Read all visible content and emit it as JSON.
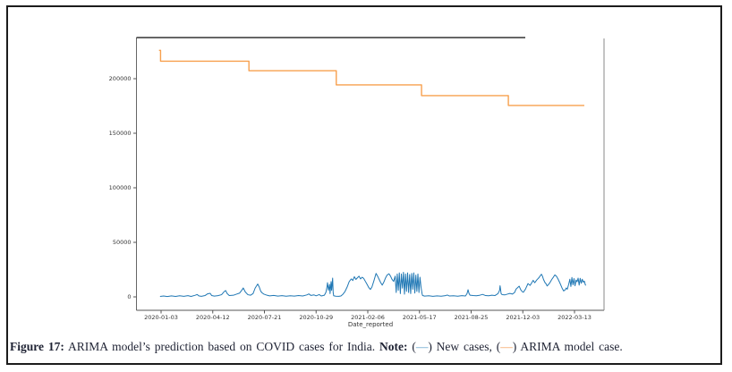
{
  "caption": {
    "figure_label": "Figure 17:",
    "body": " ARIMA model’s prediction based on COVID cases for India. ",
    "note_label": "Note:",
    "seg1": " (",
    "dash1": "—",
    "seg2": ") New cases, (",
    "dash2": "—",
    "seg3": ") ARIMA model case.",
    "dash1_color": "#5b9ec9",
    "dash2_color": "#f5a05a"
  },
  "chart_data": {
    "type": "line",
    "title": "",
    "xlabel": "Date_reported",
    "ylabel": "",
    "grid": false,
    "legend_position": "none",
    "x_unit": "days since 2020-01-03",
    "x_tick_days": [
      0,
      100,
      200,
      300,
      400,
      500,
      600,
      700,
      800
    ],
    "x_tick_labels": [
      "2020-01-03",
      "2020-04-12",
      "2020-07-21",
      "2020-10-29",
      "2021-02-06",
      "2021-05-17",
      "2021-08-25",
      "2021-12-03",
      "2022-03-13"
    ],
    "y_ticks": [
      0,
      50000,
      100000,
      150000,
      200000
    ],
    "y_tick_labels": [
      "0",
      "50000",
      "100000",
      "150000",
      "200000"
    ],
    "xlim_days": [
      -48,
      857
    ],
    "ylim": [
      -12300,
      237700
    ],
    "series": [
      {
        "name": "New cases",
        "color": "#1f77b4",
        "width": 1,
        "points": [
          [
            -2,
            400
          ],
          [
            5,
            800
          ],
          [
            12,
            300
          ],
          [
            20,
            900
          ],
          [
            28,
            400
          ],
          [
            36,
            1000
          ],
          [
            44,
            500
          ],
          [
            52,
            1100
          ],
          [
            58,
            400
          ],
          [
            66,
            1500
          ],
          [
            70,
            2200
          ],
          [
            73,
            900
          ],
          [
            78,
            500
          ],
          [
            85,
            1200
          ],
          [
            90,
            2800
          ],
          [
            95,
            3300
          ],
          [
            98,
            1200
          ],
          [
            103,
            700
          ],
          [
            110,
            1100
          ],
          [
            117,
            2000
          ],
          [
            122,
            4800
          ],
          [
            125,
            5800
          ],
          [
            128,
            3000
          ],
          [
            132,
            1200
          ],
          [
            140,
            1500
          ],
          [
            146,
            2500
          ],
          [
            152,
            3500
          ],
          [
            156,
            6000
          ],
          [
            159,
            8200
          ],
          [
            163,
            4500
          ],
          [
            168,
            2000
          ],
          [
            173,
            1500
          ],
          [
            178,
            3000
          ],
          [
            182,
            8000
          ],
          [
            184,
            9500
          ],
          [
            187,
            11800
          ],
          [
            190,
            9000
          ],
          [
            193,
            5000
          ],
          [
            196,
            3500
          ],
          [
            199,
            2500
          ],
          [
            205,
            1500
          ],
          [
            210,
            900
          ],
          [
            218,
            1300
          ],
          [
            226,
            700
          ],
          [
            234,
            1100
          ],
          [
            242,
            600
          ],
          [
            250,
            1000
          ],
          [
            258,
            700
          ],
          [
            266,
            1200
          ],
          [
            274,
            800
          ],
          [
            282,
            1800
          ],
          [
            286,
            2700
          ],
          [
            290,
            1300
          ],
          [
            296,
            1800
          ],
          [
            300,
            1000
          ],
          [
            306,
            2100
          ],
          [
            310,
            800
          ],
          [
            316,
            1500
          ],
          [
            319,
            4200
          ],
          [
            321,
            9000
          ],
          [
            322,
            13000
          ],
          [
            324,
            6000
          ],
          [
            326,
            11500
          ],
          [
            327,
            3000
          ],
          [
            329,
            14000
          ],
          [
            330,
            6000
          ],
          [
            332,
            17200
          ],
          [
            333,
            4000
          ],
          [
            334,
            1000
          ],
          [
            338,
            600
          ],
          [
            344,
            500
          ],
          [
            348,
            800
          ],
          [
            352,
            2500
          ],
          [
            356,
            5000
          ],
          [
            360,
            9000
          ],
          [
            364,
            14000
          ],
          [
            368,
            16500
          ],
          [
            371,
            15000
          ],
          [
            374,
            18500
          ],
          [
            377,
            16000
          ],
          [
            380,
            17500
          ],
          [
            383,
            19000
          ],
          [
            386,
            16500
          ],
          [
            389,
            18000
          ],
          [
            392,
            17000
          ],
          [
            395,
            14500
          ],
          [
            398,
            12000
          ],
          [
            402,
            8500
          ],
          [
            405,
            6800
          ],
          [
            408,
            9000
          ],
          [
            412,
            15000
          ],
          [
            416,
            21500
          ],
          [
            419,
            19000
          ],
          [
            422,
            16000
          ],
          [
            425,
            13000
          ],
          [
            428,
            10800
          ],
          [
            431,
            13500
          ],
          [
            434,
            17000
          ],
          [
            437,
            19800
          ],
          [
            441,
            21200
          ],
          [
            444,
            19000
          ],
          [
            447,
            16000
          ],
          [
            450,
            14200
          ],
          [
            453,
            19000
          ],
          [
            455,
            4000
          ],
          [
            457,
            21000
          ],
          [
            459,
            6000
          ],
          [
            461,
            22000
          ],
          [
            463,
            3000
          ],
          [
            465,
            21000
          ],
          [
            467,
            8000
          ],
          [
            469,
            22500
          ],
          [
            471,
            2500
          ],
          [
            473,
            21000
          ],
          [
            475,
            5000
          ],
          [
            477,
            22000
          ],
          [
            479,
            4000
          ],
          [
            481,
            20500
          ],
          [
            483,
            3000
          ],
          [
            485,
            21500
          ],
          [
            487,
            7000
          ],
          [
            489,
            22000
          ],
          [
            491,
            3500
          ],
          [
            493,
            20000
          ],
          [
            495,
            5000
          ],
          [
            497,
            21000
          ],
          [
            499,
            4000
          ],
          [
            501,
            18000
          ],
          [
            503,
            9000
          ],
          [
            505,
            3000
          ],
          [
            506,
            1200
          ],
          [
            510,
            700
          ],
          [
            518,
            1000
          ],
          [
            526,
            500
          ],
          [
            534,
            900
          ],
          [
            542,
            600
          ],
          [
            550,
            1100
          ],
          [
            554,
            1700
          ],
          [
            558,
            800
          ],
          [
            566,
            1000
          ],
          [
            574,
            600
          ],
          [
            582,
            1100
          ],
          [
            589,
            800
          ],
          [
            592,
            3000
          ],
          [
            594,
            6600
          ],
          [
            596,
            3000
          ],
          [
            598,
            1500
          ],
          [
            604,
            1200
          ],
          [
            610,
            1000
          ],
          [
            616,
            1400
          ],
          [
            622,
            2300
          ],
          [
            628,
            1200
          ],
          [
            634,
            1000
          ],
          [
            640,
            1500
          ],
          [
            646,
            1200
          ],
          [
            652,
            3000
          ],
          [
            655,
            6000
          ],
          [
            656,
            10200
          ],
          [
            658,
            3000
          ],
          [
            660,
            2000
          ],
          [
            665,
            1800
          ],
          [
            670,
            2500
          ],
          [
            675,
            3200
          ],
          [
            680,
            2600
          ],
          [
            684,
            4000
          ],
          [
            687,
            7200
          ],
          [
            690,
            8500
          ],
          [
            693,
            9800
          ],
          [
            696,
            6500
          ],
          [
            699,
            4800
          ],
          [
            701,
            4200
          ],
          [
            705,
            7000
          ],
          [
            710,
            12200
          ],
          [
            714,
            10500
          ],
          [
            718,
            13500
          ],
          [
            720,
            15200
          ],
          [
            723,
            13000
          ],
          [
            727,
            15500
          ],
          [
            731,
            17500
          ],
          [
            734,
            19500
          ],
          [
            736,
            20800
          ],
          [
            738,
            19000
          ],
          [
            740,
            16000
          ],
          [
            743,
            13000
          ],
          [
            745,
            12000
          ],
          [
            747,
            10000
          ],
          [
            750,
            11500
          ],
          [
            753,
            13500
          ],
          [
            756,
            16000
          ],
          [
            759,
            18000
          ],
          [
            762,
            20200
          ],
          [
            765,
            19000
          ],
          [
            768,
            16500
          ],
          [
            772,
            12500
          ],
          [
            776,
            8000
          ],
          [
            779,
            5400
          ],
          [
            782,
            6500
          ],
          [
            784,
            8200
          ],
          [
            786,
            7000
          ],
          [
            789,
            12000
          ],
          [
            791,
            16200
          ],
          [
            793,
            9500
          ],
          [
            795,
            17800
          ],
          [
            797,
            11000
          ],
          [
            799,
            16800
          ],
          [
            801,
            10200
          ],
          [
            803,
            15500
          ],
          [
            805,
            13800
          ],
          [
            807,
            17200
          ],
          [
            809,
            10800
          ],
          [
            811,
            17000
          ],
          [
            813,
            12500
          ],
          [
            815,
            16200
          ],
          [
            817,
            13500
          ],
          [
            819,
            14500
          ],
          [
            821,
            11000
          ],
          [
            822,
            10500
          ]
        ]
      },
      {
        "name": "ARIMA model case",
        "color": "#f7a04e",
        "width": 1.4,
        "points": [
          [
            -4,
            226000
          ],
          [
            -1,
            226000
          ],
          [
            -1,
            216000
          ],
          [
            170,
            216000
          ],
          [
            170,
            207300
          ],
          [
            339,
            207300
          ],
          [
            339,
            194300
          ],
          [
            504,
            194300
          ],
          [
            504,
            184500
          ],
          [
            672,
            184500
          ],
          [
            672,
            175500
          ],
          [
            819,
            175500
          ]
        ]
      }
    ]
  }
}
